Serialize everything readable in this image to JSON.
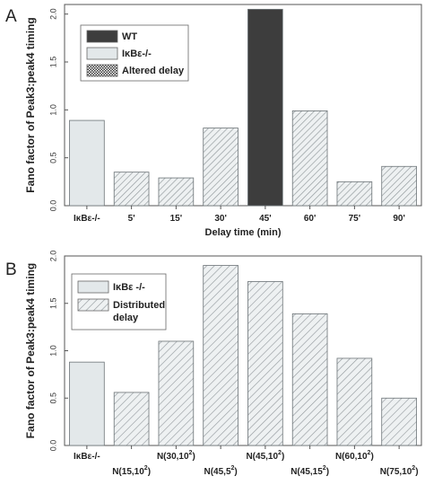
{
  "colors": {
    "wt": "#3d3d3d",
    "light_fill": "#e3e8ea",
    "hatch_stroke": "#8f969a",
    "hatch_bg": "#eef1f2",
    "axis": "#555555"
  },
  "chart_data": [
    {
      "panel": "A",
      "type": "bar",
      "ylabel": "Fano factor of Peak3:peak4 timing",
      "xlabel": "Delay time (min)",
      "ylim": [
        0,
        2.1
      ],
      "yticks": [
        "0.0",
        "0.5",
        "1.0",
        "1.5",
        "2.0"
      ],
      "ytick_values": [
        0,
        0.5,
        1.0,
        1.5,
        2.0
      ],
      "categories": [
        "IκBε-/-",
        "5'",
        "15'",
        "30'",
        "45'",
        "60'",
        "75'",
        "90'"
      ],
      "values": [
        0.89,
        0.35,
        0.29,
        0.81,
        2.05,
        0.99,
        0.25,
        0.41
      ],
      "styles": [
        "light",
        "hatch-dense",
        "hatch-dense",
        "hatch-dense",
        "wt",
        "hatch-dense",
        "hatch-dense",
        "hatch-dense"
      ],
      "legend": [
        {
          "label": "WT",
          "style": "wt"
        },
        {
          "label": "IκBε-/-",
          "style": "light"
        },
        {
          "label": "Altered delay",
          "style": "checker"
        }
      ],
      "legend_position": "top-left"
    },
    {
      "panel": "B",
      "type": "bar",
      "ylabel": "Fano factor of Peak3:peak4 timing",
      "xlabel": "",
      "ylim": [
        0,
        2.0
      ],
      "yticks": [
        "0.0",
        "0.5",
        "1.0",
        "1.5",
        "2.0"
      ],
      "ytick_values": [
        0,
        0.5,
        1.0,
        1.5,
        2.0
      ],
      "categories": [
        {
          "base": "IκBε-/-",
          "sup": ""
        },
        {
          "base": "N(15,10",
          "sup": "2",
          "end": ")"
        },
        {
          "base": "N(30,10",
          "sup": "2",
          "end": ")"
        },
        {
          "base": "N(45,5",
          "sup": "2",
          "end": ")"
        },
        {
          "base": "N(45,10",
          "sup": "2",
          "end": ")"
        },
        {
          "base": "N(45,15",
          "sup": "2",
          "end": ")"
        },
        {
          "base": "N(60,10",
          "sup": "2",
          "end": ")"
        },
        {
          "base": "N(75,10",
          "sup": "2",
          "end": ")"
        }
      ],
      "values": [
        0.88,
        0.56,
        1.1,
        1.9,
        1.73,
        1.39,
        0.92,
        0.5
      ],
      "styles": [
        "light",
        "hatch-wide",
        "hatch-wide",
        "hatch-wide",
        "hatch-wide",
        "hatch-wide",
        "hatch-wide",
        "hatch-wide"
      ],
      "legend": [
        {
          "label": "IκBε -/-",
          "style": "light"
        },
        {
          "label": "Distributed",
          "label2": "delay",
          "style": "hatch-wide"
        }
      ],
      "legend_position": "top-left"
    }
  ]
}
